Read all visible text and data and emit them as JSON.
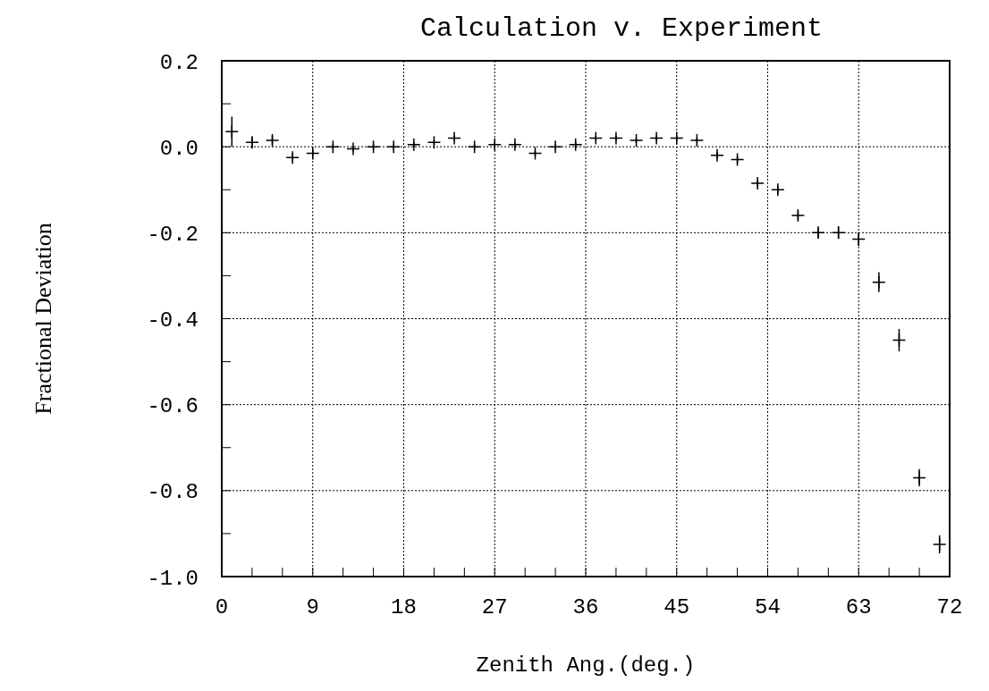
{
  "chart_data": {
    "type": "scatter",
    "title": "Calculation v. Experiment",
    "xlabel": "Zenith Ang.(deg.)",
    "ylabel": "Fractional Deviation",
    "x": [
      1,
      3,
      5,
      7,
      9,
      11,
      13,
      15,
      17,
      19,
      21,
      23,
      25,
      27,
      29,
      31,
      33,
      35,
      37,
      39,
      41,
      43,
      45,
      47,
      49,
      51,
      53,
      55,
      57,
      59,
      61,
      63,
      65,
      67,
      69,
      71
    ],
    "values": [
      0.035,
      0.01,
      0.015,
      -0.025,
      -0.015,
      0.0,
      -0.005,
      0.0,
      0.0,
      0.005,
      0.01,
      0.02,
      0.0,
      0.005,
      0.005,
      -0.015,
      0.0,
      0.005,
      0.02,
      0.02,
      0.015,
      0.02,
      0.02,
      0.015,
      -0.02,
      -0.03,
      -0.085,
      -0.1,
      -0.16,
      -0.2,
      -0.2,
      -0.215,
      -0.315,
      -0.45,
      -0.77,
      -0.925
    ],
    "errors": [
      0.035,
      0.012,
      0.01,
      0.008,
      0.008,
      0.006,
      0.006,
      0.006,
      0.006,
      0.006,
      0.006,
      0.006,
      0.006,
      0.006,
      0.006,
      0.006,
      0.006,
      0.006,
      0.006,
      0.006,
      0.006,
      0.006,
      0.006,
      0.006,
      0.008,
      0.008,
      0.008,
      0.01,
      0.01,
      0.012,
      0.014,
      0.016,
      0.023,
      0.026,
      0.02,
      0.021
    ],
    "color": "#000000",
    "marker": "cross",
    "xlim": [
      0,
      72
    ],
    "xticks": [
      0,
      {
        "value": 3,
        "label": null
      },
      {
        "value": 6,
        "label": null
      },
      9,
      {
        "value": 12,
        "label": null
      },
      {
        "value": 15,
        "label": null
      },
      18,
      {
        "value": 21,
        "label": null
      },
      {
        "value": 24,
        "label": null
      },
      27,
      {
        "value": 30,
        "label": null
      },
      {
        "value": 33,
        "label": null
      },
      36,
      {
        "value": 39,
        "label": null
      },
      {
        "value": 42,
        "label": null
      },
      45,
      {
        "value": 48,
        "label": null
      },
      {
        "value": 51,
        "label": null
      },
      54,
      {
        "value": 57,
        "label": null
      },
      {
        "value": 60,
        "label": null
      },
      63,
      {
        "value": 66,
        "label": null
      },
      {
        "value": 69,
        "label": null
      },
      72
    ],
    "ylim": [
      -1.0,
      0.2
    ],
    "yticks": [
      {
        "value": 0.2,
        "label": "0.2"
      },
      {
        "value": 0.1,
        "label": null
      },
      {
        "value": 0,
        "label": "0.0"
      },
      {
        "value": -0.1,
        "label": null
      },
      {
        "value": -0.2,
        "label": "-0.2"
      },
      {
        "value": -0.3,
        "label": null
      },
      {
        "value": -0.4,
        "label": "-0.4"
      },
      {
        "value": -0.5,
        "label": null
      },
      {
        "value": -0.6,
        "label": "-0.6"
      },
      {
        "value": -0.7,
        "label": null
      },
      {
        "value": -0.8,
        "label": "-0.8"
      },
      {
        "value": -0.9,
        "label": null
      },
      {
        "value": -1.0,
        "label": "-1.0"
      }
    ],
    "grid": true
  }
}
